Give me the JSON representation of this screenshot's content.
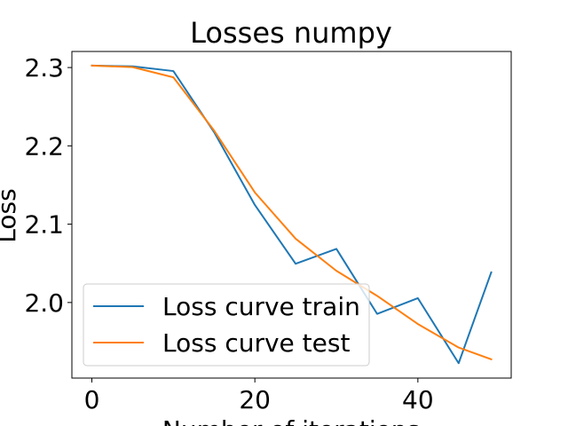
{
  "chart_data": {
    "type": "line",
    "title": "Losses numpy",
    "xlabel": "Number of iterations",
    "ylabel": "Loss",
    "xlim": [
      -2.45,
      51.45
    ],
    "ylim": [
      1.9035,
      2.3205
    ],
    "xticks": [
      0,
      20,
      40
    ],
    "yticks": [
      2.0,
      2.1,
      2.2,
      2.3
    ],
    "xtick_labels": [
      "0",
      "20",
      "40"
    ],
    "ytick_labels": [
      "2.0",
      "2.1",
      "2.2",
      "2.3"
    ],
    "grid": false,
    "legend_position": "lower-left",
    "series": [
      {
        "name": "Loss curve train",
        "color": "#1f77b4",
        "x": [
          0,
          5,
          10,
          15,
          20,
          25,
          30,
          35,
          40,
          45,
          49
        ],
        "y": [
          2.3025,
          2.3015,
          2.2955,
          2.2175,
          2.1245,
          2.0495,
          2.0685,
          1.9855,
          2.0055,
          1.9225,
          2.0385
        ]
      },
      {
        "name": "Loss curve test",
        "color": "#ff7f0e",
        "x": [
          0,
          5,
          10,
          15,
          20,
          25,
          30,
          35,
          40,
          45,
          49
        ],
        "y": [
          2.3025,
          2.3005,
          2.2875,
          2.2195,
          2.1405,
          2.0815,
          2.0405,
          2.0085,
          1.9725,
          1.9425,
          1.9275
        ]
      }
    ]
  }
}
